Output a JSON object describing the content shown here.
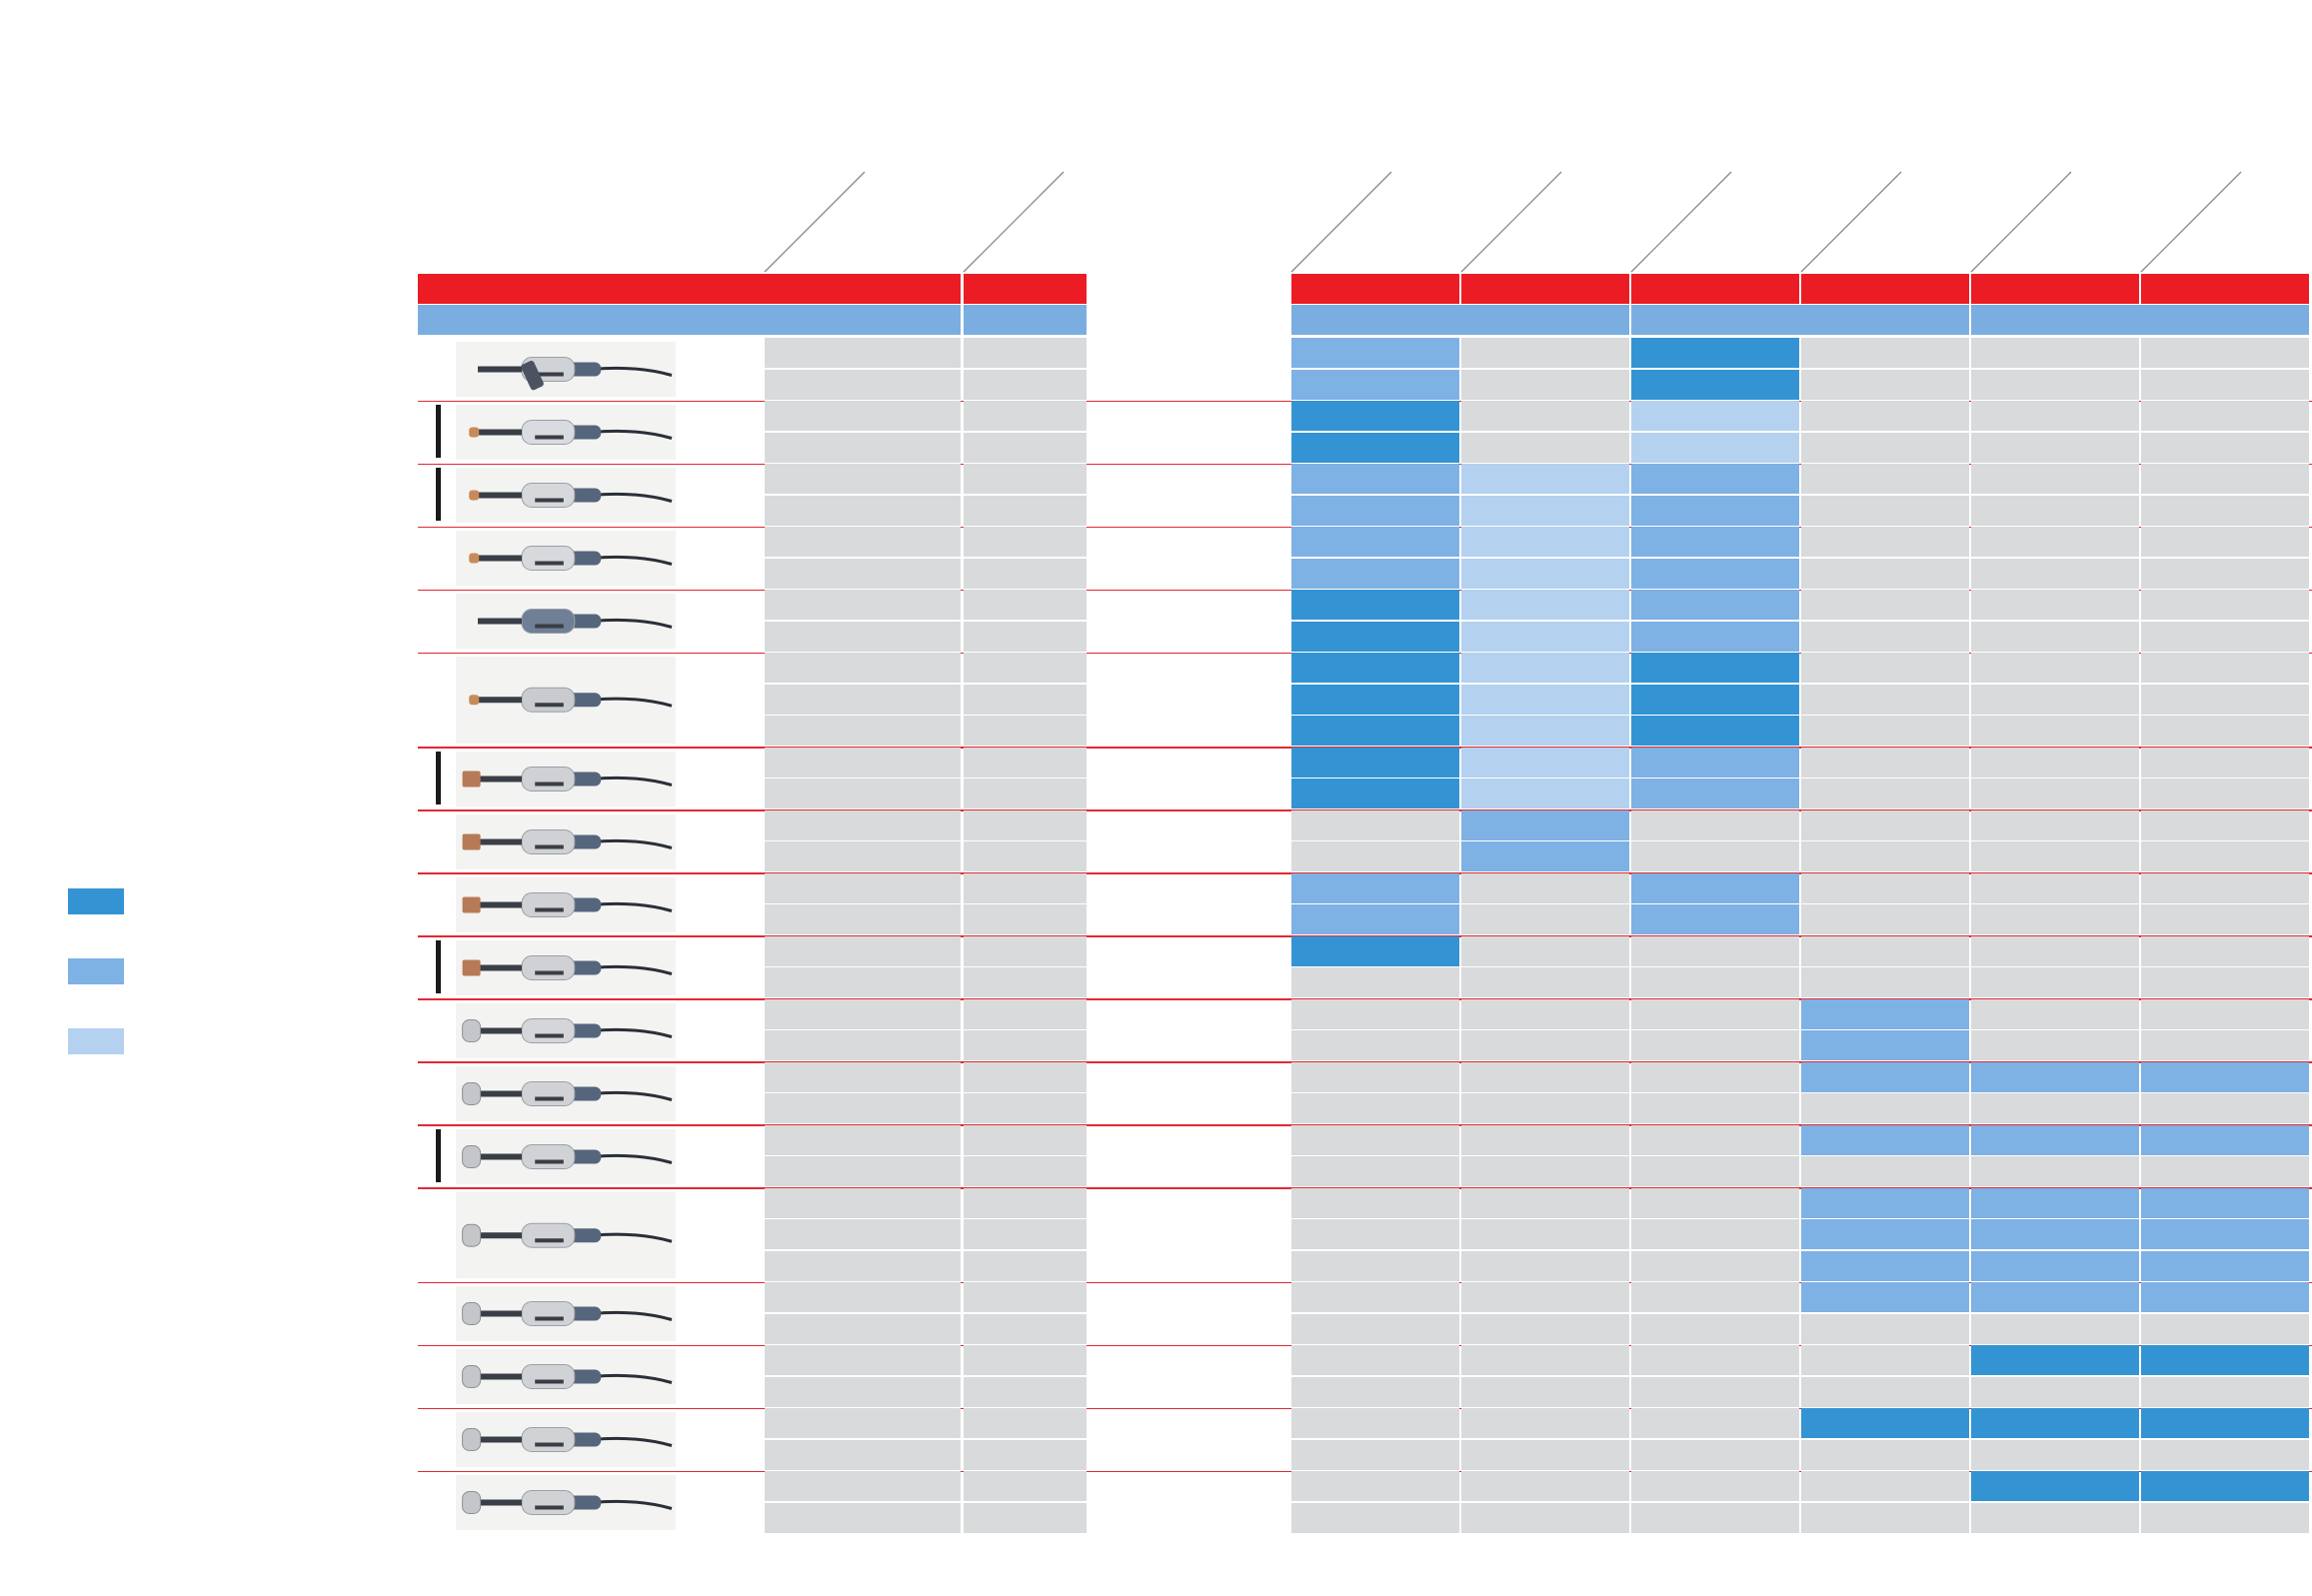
{
  "colors": {
    "header_red": "#ec1c24",
    "category_band": "#7baee0",
    "cell_gray": "#d9dadc",
    "separator_red": "#e12a33",
    "level_1": "#3494d3",
    "level_2": "#7eb1e4",
    "level_3": "#b4d1ef",
    "diagonal_line": "#8a8a8a"
  },
  "legend": [
    {
      "level": 1,
      "color": "#3494d3"
    },
    {
      "level": 2,
      "color": "#7eb1e4"
    },
    {
      "level": 3,
      "color": "#b4d1ef"
    }
  ],
  "matrix": {
    "spec_columns": 2,
    "application_columns": 6,
    "application_groups": 3,
    "groups": [
      {
        "rows": 2,
        "ratings": [
          [
            2,
            0,
            1,
            0,
            0,
            0
          ],
          [
            2,
            0,
            1,
            0,
            0,
            0
          ]
        ]
      },
      {
        "rows": 2,
        "ratings": [
          [
            1,
            0,
            3,
            0,
            0,
            0
          ],
          [
            1,
            0,
            3,
            0,
            0,
            0
          ]
        ]
      },
      {
        "rows": 2,
        "ratings": [
          [
            2,
            3,
            2,
            0,
            0,
            0
          ],
          [
            2,
            3,
            2,
            0,
            0,
            0
          ]
        ]
      },
      {
        "rows": 2,
        "ratings": [
          [
            2,
            3,
            2,
            0,
            0,
            0
          ],
          [
            2,
            3,
            2,
            0,
            0,
            0
          ]
        ]
      },
      {
        "rows": 2,
        "ratings": [
          [
            1,
            3,
            2,
            0,
            0,
            0
          ],
          [
            1,
            3,
            2,
            0,
            0,
            0
          ]
        ]
      },
      {
        "rows": 3,
        "ratings": [
          [
            1,
            3,
            1,
            0,
            0,
            0
          ],
          [
            1,
            3,
            1,
            0,
            0,
            0
          ],
          [
            1,
            3,
            1,
            0,
            0,
            0
          ]
        ]
      },
      {
        "rows": 2,
        "ratings": [
          [
            1,
            3,
            2,
            0,
            0,
            0
          ],
          [
            1,
            3,
            2,
            0,
            0,
            0
          ]
        ]
      },
      {
        "rows": 2,
        "ratings": [
          [
            0,
            2,
            0,
            0,
            0,
            0
          ],
          [
            0,
            2,
            0,
            0,
            0,
            0
          ]
        ]
      },
      {
        "rows": 2,
        "ratings": [
          [
            2,
            0,
            2,
            0,
            0,
            0
          ],
          [
            2,
            0,
            2,
            0,
            0,
            0
          ]
        ]
      },
      {
        "rows": 2,
        "ratings": [
          [
            1,
            0,
            0,
            0,
            0,
            0
          ],
          [
            0,
            0,
            0,
            0,
            0,
            0
          ]
        ]
      },
      {
        "rows": 2,
        "ratings": [
          [
            0,
            0,
            0,
            2,
            0,
            0
          ],
          [
            0,
            0,
            0,
            2,
            0,
            0
          ]
        ]
      },
      {
        "rows": 2,
        "ratings": [
          [
            0,
            0,
            0,
            2,
            2,
            2
          ],
          [
            0,
            0,
            0,
            0,
            0,
            0
          ]
        ]
      },
      {
        "rows": 2,
        "ratings": [
          [
            0,
            0,
            0,
            2,
            2,
            2
          ],
          [
            0,
            0,
            0,
            0,
            0,
            0
          ]
        ]
      },
      {
        "rows": 3,
        "ratings": [
          [
            0,
            0,
            0,
            2,
            2,
            2
          ],
          [
            0,
            0,
            0,
            2,
            2,
            2
          ],
          [
            0,
            0,
            0,
            2,
            2,
            2
          ]
        ]
      },
      {
        "rows": 2,
        "ratings": [
          [
            0,
            0,
            0,
            2,
            2,
            2
          ],
          [
            0,
            0,
            0,
            0,
            0,
            0
          ]
        ]
      },
      {
        "rows": 2,
        "ratings": [
          [
            0,
            0,
            0,
            0,
            1,
            1
          ],
          [
            0,
            0,
            0,
            0,
            0,
            0
          ]
        ]
      },
      {
        "rows": 2,
        "ratings": [
          [
            0,
            0,
            0,
            1,
            1,
            1
          ],
          [
            0,
            0,
            0,
            0,
            0,
            0
          ]
        ]
      },
      {
        "rows": 2,
        "ratings": [
          [
            0,
            0,
            0,
            0,
            1,
            1
          ],
          [
            0,
            0,
            0,
            0,
            0,
            0
          ]
        ]
      }
    ]
  },
  "tools": [
    {
      "icon": "pistol-grip-grinder-icon",
      "body": "#cfd2d6",
      "attachment": "none",
      "edge_bar": false
    },
    {
      "icon": "die-grinder-icon",
      "body": "#d8dbe0",
      "attachment": "small",
      "edge_bar": true
    },
    {
      "icon": "die-grinder-icon",
      "body": "#d6d8dc",
      "attachment": "small",
      "edge_bar": true
    },
    {
      "icon": "die-grinder-icon",
      "body": "#d8d9dc",
      "attachment": "small",
      "edge_bar": false
    },
    {
      "icon": "long-neck-grinder-icon",
      "body": "#6f7f96",
      "attachment": "none",
      "edge_bar": false
    },
    {
      "icon": "straight-grinder-icon",
      "body": "#c9cbcf",
      "attachment": "small",
      "edge_bar": false
    },
    {
      "icon": "straight-grinder-icon",
      "body": "#cfd1d4",
      "attachment": "stone",
      "edge_bar": true
    },
    {
      "icon": "straight-grinder-icon",
      "body": "#cfd1d4",
      "attachment": "stone",
      "edge_bar": false
    },
    {
      "icon": "straight-grinder-icon",
      "body": "#cfd1d4",
      "attachment": "stone",
      "edge_bar": false
    },
    {
      "icon": "straight-grinder-icon",
      "body": "#cfd1d4",
      "attachment": "stone",
      "edge_bar": true
    },
    {
      "icon": "straight-grinder-icon",
      "body": "#d4d6d9",
      "attachment": "collet",
      "edge_bar": false
    },
    {
      "icon": "straight-grinder-icon",
      "body": "#d0d2d5",
      "attachment": "collet",
      "edge_bar": false
    },
    {
      "icon": "straight-grinder-icon",
      "body": "#d0d2d5",
      "attachment": "collet",
      "edge_bar": true
    },
    {
      "icon": "straight-grinder-icon",
      "body": "#d0d2d5",
      "attachment": "collet",
      "edge_bar": false
    },
    {
      "icon": "straight-grinder-icon",
      "body": "#d0d2d5",
      "attachment": "collet",
      "edge_bar": false
    },
    {
      "icon": "straight-grinder-icon",
      "body": "#d0d2d5",
      "attachment": "collet",
      "edge_bar": false
    },
    {
      "icon": "straight-grinder-icon",
      "body": "#d0d2d5",
      "attachment": "collet",
      "edge_bar": false
    },
    {
      "icon": "straight-grinder-icon",
      "body": "#d0d2d5",
      "attachment": "collet",
      "edge_bar": false
    }
  ]
}
